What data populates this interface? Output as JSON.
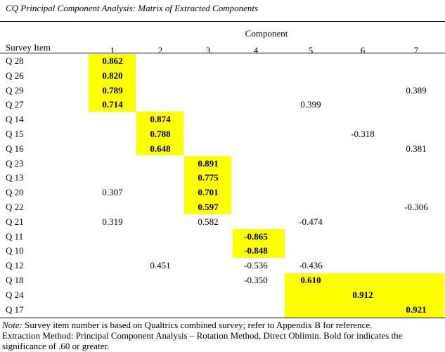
{
  "title": "CQ Principal Component Analysis:  Matrix of Extracted Components",
  "header": {
    "component_label": "Component",
    "survey_item_label": "Survey Item",
    "columns": [
      "1",
      "2",
      "3",
      "4",
      "5",
      "6",
      "7"
    ]
  },
  "rows": [
    {
      "item": "Q 28",
      "values": [
        "0.862",
        "",
        "",
        "",
        "",
        "",
        ""
      ],
      "bold": [
        0
      ]
    },
    {
      "item": "Q 26",
      "values": [
        "0.820",
        "",
        "",
        "",
        "",
        "",
        ""
      ],
      "bold": [
        0
      ]
    },
    {
      "item": "Q 29",
      "values": [
        "0.789",
        "",
        "",
        "",
        "",
        "",
        "0.389"
      ],
      "bold": [
        0
      ]
    },
    {
      "item": "Q 27",
      "values": [
        "0.714",
        "",
        "",
        "",
        "0.399",
        "",
        ""
      ],
      "bold": [
        0
      ]
    },
    {
      "item": "Q 14",
      "values": [
        "",
        "0.874",
        "",
        "",
        "",
        "",
        ""
      ],
      "bold": [
        1
      ]
    },
    {
      "item": "Q 15",
      "values": [
        "",
        "0.788",
        "",
        "",
        "",
        "-0.318",
        ""
      ],
      "bold": [
        1
      ]
    },
    {
      "item": "Q 16",
      "values": [
        "",
        "0.648",
        "",
        "",
        "",
        "",
        "0.381"
      ],
      "bold": [
        1
      ]
    },
    {
      "item": "Q 23",
      "values": [
        "",
        "",
        "0.891",
        "",
        "",
        "",
        ""
      ],
      "bold": [
        2
      ]
    },
    {
      "item": "Q 13",
      "values": [
        "",
        "",
        "0.775",
        "",
        "",
        "",
        ""
      ],
      "bold": [
        2
      ]
    },
    {
      "item": "Q 20",
      "values": [
        "0.307",
        "",
        "0.701",
        "",
        "",
        "",
        ""
      ],
      "bold": [
        2
      ]
    },
    {
      "item": "Q 22",
      "values": [
        "",
        "",
        "0.597",
        "",
        "",
        "",
        "-0.306"
      ],
      "bold": [
        2
      ]
    },
    {
      "item": "Q 21",
      "values": [
        "0.319",
        "",
        "0.582",
        "",
        "-0.474",
        "",
        ""
      ],
      "bold": []
    },
    {
      "item": "Q 11",
      "values": [
        "",
        "",
        "",
        "-0.865",
        "",
        "",
        ""
      ],
      "bold": [
        3
      ]
    },
    {
      "item": "Q 10",
      "values": [
        "",
        "",
        "",
        "-0.848",
        "",
        "",
        ""
      ],
      "bold": [
        3
      ]
    },
    {
      "item": "Q 12",
      "values": [
        "",
        "0.451",
        "",
        "-0.536",
        "-0.436",
        "",
        ""
      ],
      "bold": []
    },
    {
      "item": "Q 18",
      "values": [
        "",
        "",
        "",
        "-0.350",
        "0.610",
        "",
        ""
      ],
      "bold": [
        4
      ]
    },
    {
      "item": "Q 24",
      "values": [
        "",
        "",
        "",
        "",
        "",
        "0.912",
        ""
      ],
      "bold": [
        5
      ]
    },
    {
      "item": "Q 17",
      "values": [
        "",
        "",
        "",
        "",
        "",
        "",
        "0.921"
      ],
      "bold": [
        6
      ]
    }
  ],
  "highlight_color": "#ffff00",
  "notes": {
    "note_label": "Note:",
    "note_text": "  Survey item number is based on Qualtrics combined survey; refer to Appendix B for reference.",
    "extraction_line": "Extraction Method:  Principal Component Analysis – Rotation Method, Direct Oblimin. Bold for indicates the significance of .60 or greater."
  }
}
